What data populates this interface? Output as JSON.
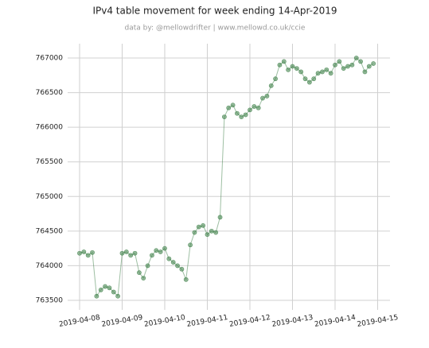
{
  "chart_data": {
    "type": "line",
    "title": "IPv4 table movement for week ending 14-Apr-2019",
    "subtitle": "data by: @mellowdrifter | www.mellowd.co.uk/ccie",
    "x": [
      0.0,
      0.1,
      0.2,
      0.3,
      0.4,
      0.5,
      0.6,
      0.7,
      0.8,
      0.9,
      1.0,
      1.1,
      1.2,
      1.3,
      1.4,
      1.5,
      1.6,
      1.7,
      1.8,
      1.9,
      2.0,
      2.1,
      2.2,
      2.3,
      2.4,
      2.5,
      2.6,
      2.7,
      2.8,
      2.9,
      3.0,
      3.1,
      3.2,
      3.3,
      3.4,
      3.5,
      3.6,
      3.7,
      3.8,
      3.9,
      4.0,
      4.1,
      4.2,
      4.3,
      4.4,
      4.5,
      4.6,
      4.7,
      4.8,
      4.9,
      5.0,
      5.1,
      5.2,
      5.3,
      5.4,
      5.5,
      5.6,
      5.7,
      5.8,
      5.9,
      6.0,
      6.1,
      6.2,
      6.3,
      6.4,
      6.5,
      6.6,
      6.7,
      6.8,
      6.9
    ],
    "series": [
      {
        "color": "#3d7f47",
        "values": [
          764180,
          764200,
          764150,
          764190,
          763560,
          763650,
          763700,
          763680,
          763620,
          763560,
          764180,
          764200,
          764150,
          764180,
          763900,
          763820,
          764000,
          764150,
          764220,
          764200,
          764250,
          764100,
          764050,
          764000,
          763950,
          763800,
          764300,
          764480,
          764560,
          764580,
          764450,
          764500,
          764480,
          764700,
          766150,
          766280,
          766320,
          766200,
          766150,
          766180,
          766250,
          766300,
          766280,
          766420,
          766450,
          766600,
          766700,
          766900,
          766950,
          766830,
          766880,
          766850,
          766800,
          766700,
          766650,
          766700,
          766780,
          766800,
          766830,
          766780,
          766900,
          766950,
          766850,
          766880,
          766900,
          767000,
          766950,
          766800,
          766880,
          766920
        ]
      }
    ],
    "xlim": [
      -0.28,
      7.29
    ],
    "xticks": [
      {
        "value": 0,
        "label": "2019-04-08"
      },
      {
        "value": 1,
        "label": "2019-04-09"
      },
      {
        "value": 2,
        "label": "2019-04-10"
      },
      {
        "value": 3,
        "label": "2019-04-11"
      },
      {
        "value": 4,
        "label": "2019-04-12"
      },
      {
        "value": 5,
        "label": "2019-04-13"
      },
      {
        "value": 6,
        "label": "2019-04-14"
      },
      {
        "value": 7,
        "label": "2019-04-15"
      }
    ],
    "ylim": [
      763362,
      767207
    ],
    "yticks": [
      763500,
      764000,
      764500,
      765000,
      765500,
      766000,
      766500,
      767000
    ],
    "grid": true
  }
}
